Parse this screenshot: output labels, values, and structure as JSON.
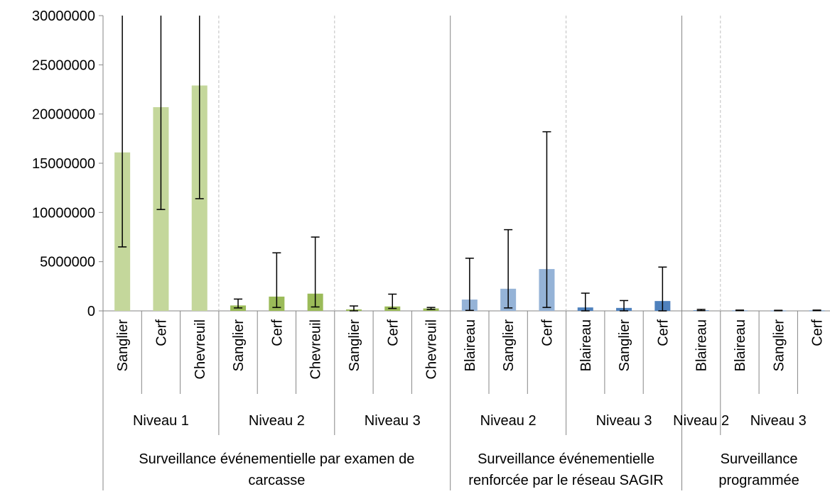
{
  "colors": {
    "light_green": "#C4D79B",
    "mid_green": "#9BBB59",
    "light_blue": "#95B3D7",
    "mid_blue": "#4F81BD",
    "axis": "#868686",
    "dashed": "#BFBFBF",
    "error_bar": "#000000"
  },
  "chart_data": {
    "type": "bar",
    "title": "",
    "xlabel": "",
    "ylabel": "",
    "ylim": [
      0,
      30000000
    ],
    "yticks": [
      "0",
      "5000000",
      "10000000",
      "15000000",
      "20000000",
      "25000000",
      "30000000"
    ],
    "grid": false,
    "legend": "none",
    "bars": [
      {
        "category": "Sanglier",
        "value": 16100000,
        "err_low": 6500000,
        "err_high": 30000000,
        "color": "light_green"
      },
      {
        "category": "Cerf",
        "value": 20700000,
        "err_low": 10300000,
        "err_high": 30000000,
        "color": "light_green"
      },
      {
        "category": "Chevreuil",
        "value": 22900000,
        "err_low": 11400000,
        "err_high": 30000000,
        "color": "light_green"
      },
      {
        "category": "Sanglier",
        "value": 550000,
        "err_low": 300000,
        "err_high": 1200000,
        "color": "mid_green"
      },
      {
        "category": "Cerf",
        "value": 1450000,
        "err_low": 350000,
        "err_high": 5900000,
        "color": "mid_green"
      },
      {
        "category": "Chevreuil",
        "value": 1750000,
        "err_low": 400000,
        "err_high": 7500000,
        "color": "mid_green"
      },
      {
        "category": "Sanglier",
        "value": 150000,
        "err_low": 0,
        "err_high": 500000,
        "color": "mid_green"
      },
      {
        "category": "Cerf",
        "value": 450000,
        "err_low": 250000,
        "err_high": 1700000,
        "color": "mid_green"
      },
      {
        "category": "Chevreuil",
        "value": 250000,
        "err_low": 150000,
        "err_high": 350000,
        "color": "mid_green"
      },
      {
        "category": "Blaireau",
        "value": 1150000,
        "err_low": 50000,
        "err_high": 5350000,
        "color": "light_blue"
      },
      {
        "category": "Sanglier",
        "value": 2250000,
        "err_low": 300000,
        "err_high": 8250000,
        "color": "light_blue"
      },
      {
        "category": "Cerf",
        "value": 4250000,
        "err_low": 350000,
        "err_high": 18200000,
        "color": "light_blue"
      },
      {
        "category": "Blaireau",
        "value": 350000,
        "err_low": 0,
        "err_high": 1800000,
        "color": "mid_blue"
      },
      {
        "category": "Sanglier",
        "value": 300000,
        "err_low": 0,
        "err_high": 1050000,
        "color": "mid_blue"
      },
      {
        "category": "Cerf",
        "value": 1000000,
        "err_low": 0,
        "err_high": 4450000,
        "color": "mid_blue"
      },
      {
        "category": "Blaireau",
        "value": 60000,
        "err_low": 20000,
        "err_high": 150000,
        "color": "mid_blue"
      },
      {
        "category": "Blaireau",
        "value": 40000,
        "err_low": 20000,
        "err_high": 80000,
        "color": "mid_blue"
      },
      {
        "category": "Sanglier",
        "value": 30000,
        "err_low": 10000,
        "err_high": 60000,
        "color": "mid_blue"
      },
      {
        "category": "Cerf",
        "value": 40000,
        "err_low": 20000,
        "err_high": 80000,
        "color": "mid_blue"
      }
    ],
    "levels": [
      {
        "label": "Niveau 1",
        "start": 0,
        "end": 3
      },
      {
        "label": "Niveau 2",
        "start": 3,
        "end": 6
      },
      {
        "label": "Niveau 3",
        "start": 6,
        "end": 9
      },
      {
        "label": "Niveau 2",
        "start": 9,
        "end": 12
      },
      {
        "label": "Niveau 3",
        "start": 12,
        "end": 15
      },
      {
        "label": "Niveau 2",
        "start": 15,
        "end": 16
      },
      {
        "label": "Niveau 3",
        "start": 16,
        "end": 19
      }
    ],
    "groups": [
      {
        "lines": [
          "Surveillance événementielle par examen de",
          "carcasse"
        ],
        "start": 0,
        "end": 9
      },
      {
        "lines": [
          "Surveillance événementielle",
          "renforcée par le réseau SAGIR"
        ],
        "start": 9,
        "end": 15
      },
      {
        "lines": [
          "Surveillance",
          "programmée"
        ],
        "start": 15,
        "end": 19
      }
    ]
  }
}
